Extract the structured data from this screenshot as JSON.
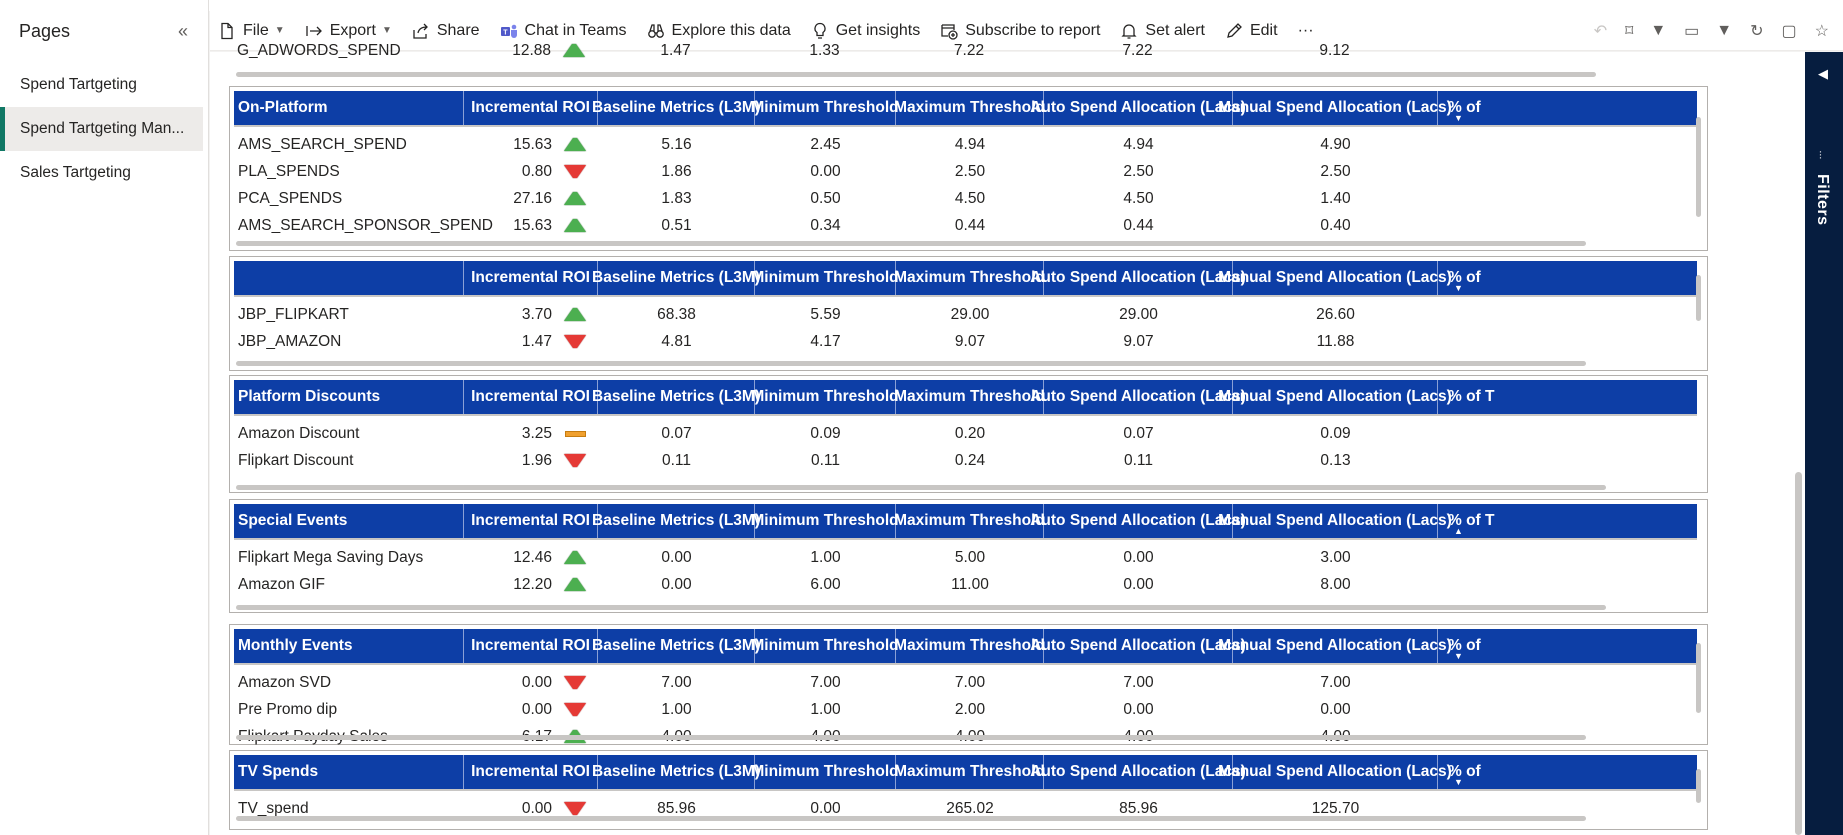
{
  "sidebar": {
    "title": "Pages",
    "collapse_icon": "«",
    "pages": [
      {
        "label": "Spend Tartgeting",
        "active": false
      },
      {
        "label": "Spend Tartgeting Man...",
        "active": true
      },
      {
        "label": "Sales Tartgeting",
        "active": false
      }
    ]
  },
  "toolbar": {
    "file": "File",
    "export": "Export",
    "share": "Share",
    "teams": "Chat in Teams",
    "explore": "Explore this data",
    "insights": "Get insights",
    "subscribe": "Subscribe to report",
    "alert": "Set alert",
    "edit": "Edit",
    "more": "···"
  },
  "filters": {
    "label": "Filters"
  },
  "columns": [
    "Incremental ROI",
    "Baseline Metrics (L3M)",
    "Minimum Threshold",
    "Maximum Threshold",
    "Auto Spend Allocation (Lacs)",
    "Manual Spend Allocation (Lacs)",
    "% of"
  ],
  "partial_row": {
    "name": "G_ADWORDS_SPEND",
    "roi": "12.88",
    "indicator": "up",
    "baseline": "1.47",
    "min": "1.33",
    "max": "7.22",
    "auto": "7.22",
    "manual": "9.12"
  },
  "tables": [
    {
      "title": "On-Platform",
      "last_col": "% of",
      "sort": "down",
      "rows": [
        {
          "name": "AMS_SEARCH_SPEND",
          "roi": "15.63",
          "indicator": "up",
          "baseline": "5.16",
          "min": "2.45",
          "max": "4.94",
          "auto": "4.94",
          "manual": "4.90"
        },
        {
          "name": "PLA_SPENDS",
          "roi": "0.80",
          "indicator": "down",
          "baseline": "1.86",
          "min": "0.00",
          "max": "2.50",
          "auto": "2.50",
          "manual": "2.50"
        },
        {
          "name": "PCA_SPENDS",
          "roi": "27.16",
          "indicator": "up",
          "baseline": "1.83",
          "min": "0.50",
          "max": "4.50",
          "auto": "4.50",
          "manual": "1.40"
        },
        {
          "name": "AMS_SEARCH_SPONSOR_SPEND",
          "roi": "15.63",
          "indicator": "up",
          "baseline": "0.51",
          "min": "0.34",
          "max": "0.44",
          "auto": "0.44",
          "manual": "0.40"
        }
      ]
    },
    {
      "title": "",
      "last_col": "% of",
      "sort": "down",
      "rows": [
        {
          "name": "JBP_FLIPKART",
          "roi": "3.70",
          "indicator": "up",
          "baseline": "68.38",
          "min": "5.59",
          "max": "29.00",
          "auto": "29.00",
          "manual": "26.60"
        },
        {
          "name": "JBP_AMAZON",
          "roi": "1.47",
          "indicator": "down",
          "baseline": "4.81",
          "min": "4.17",
          "max": "9.07",
          "auto": "9.07",
          "manual": "11.88"
        }
      ]
    },
    {
      "title": "Platform Discounts",
      "last_col": "% of T",
      "sort": "",
      "rows": [
        {
          "name": "Amazon Discount",
          "roi": "3.25",
          "indicator": "flat",
          "baseline": "0.07",
          "min": "0.09",
          "max": "0.20",
          "auto": "0.07",
          "manual": "0.09"
        },
        {
          "name": "Flipkart Discount",
          "roi": "1.96",
          "indicator": "down",
          "baseline": "0.11",
          "min": "0.11",
          "max": "0.24",
          "auto": "0.11",
          "manual": "0.13"
        }
      ]
    },
    {
      "title": "Special Events",
      "last_col": "% of T",
      "sort": "up",
      "rows": [
        {
          "name": "Flipkart Mega Saving Days",
          "roi": "12.46",
          "indicator": "up",
          "baseline": "0.00",
          "min": "1.00",
          "max": "5.00",
          "auto": "0.00",
          "manual": "3.00"
        },
        {
          "name": "Amazon GIF",
          "roi": "12.20",
          "indicator": "up",
          "baseline": "0.00",
          "min": "6.00",
          "max": "11.00",
          "auto": "0.00",
          "manual": "8.00"
        }
      ]
    },
    {
      "title": "Monthly Events",
      "last_col": "% of",
      "sort": "down",
      "rows": [
        {
          "name": "Amazon SVD",
          "roi": "0.00",
          "indicator": "down",
          "baseline": "7.00",
          "min": "7.00",
          "max": "7.00",
          "auto": "7.00",
          "manual": "7.00"
        },
        {
          "name": "Pre Promo dip",
          "roi": "0.00",
          "indicator": "down",
          "baseline": "1.00",
          "min": "1.00",
          "max": "2.00",
          "auto": "0.00",
          "manual": "0.00"
        },
        {
          "name": "Flipkart Payday Sales",
          "roi": "6.17",
          "indicator": "up",
          "baseline": "4.00",
          "min": "4.00",
          "max": "4.00",
          "auto": "4.00",
          "manual": "4.00"
        }
      ]
    },
    {
      "title": "TV Spends",
      "last_col": "% of",
      "sort": "down",
      "rows": [
        {
          "name": "TV_spend",
          "roi": "0.00",
          "indicator": "down",
          "baseline": "85.96",
          "min": "0.00",
          "max": "265.02",
          "auto": "85.96",
          "manual": "125.70"
        }
      ]
    }
  ]
}
